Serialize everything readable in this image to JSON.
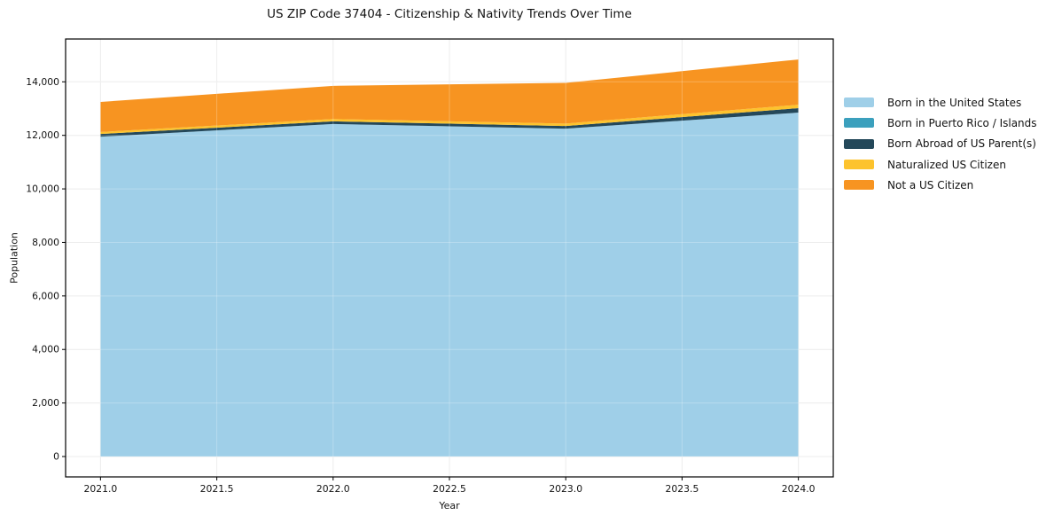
{
  "figure": {
    "background_color": "#ffffff",
    "grid_color": "#e7e7e7",
    "spine_color": "#000000",
    "text_color": "#141414"
  },
  "chart_data": {
    "type": "area",
    "stacked": true,
    "title": "US ZIP Code 37404 - Citizenship & Nativity Trends Over Time",
    "xlabel": "Year",
    "ylabel": "Population",
    "x": [
      2021,
      2022,
      2023,
      2024
    ],
    "series": [
      {
        "name": "Born in the United States",
        "color": "#9fcfe8",
        "values": [
          11950,
          12425,
          12250,
          12850
        ]
      },
      {
        "name": "Born in Puerto Rico / Islands",
        "color": "#3ba0bd",
        "values": [
          0,
          0,
          0,
          0
        ]
      },
      {
        "name": "Born Abroad of US Parent(s)",
        "color": "#24485a",
        "values": [
          100,
          100,
          100,
          165
        ]
      },
      {
        "name": "Naturalized US Citizen",
        "color": "#fdc32d",
        "values": [
          75,
          85,
          90,
          130
        ]
      },
      {
        "name": "Not a US Citizen",
        "color": "#f79421",
        "values": [
          1125,
          1240,
          1520,
          1690
        ]
      }
    ],
    "totals": [
      13250,
      13850,
      13960,
      14835
    ],
    "x_ticks": [
      "2021.0",
      "2021.5",
      "2022.0",
      "2022.5",
      "2023.0",
      "2023.5",
      "2024.0"
    ],
    "x_tick_values": [
      2021,
      2021.5,
      2022,
      2022.5,
      2023,
      2023.5,
      2024
    ],
    "y_ticks": [
      "0",
      "2,000",
      "4,000",
      "6,000",
      "8,000",
      "10,000",
      "12,000",
      "14,000"
    ],
    "y_tick_values": [
      0,
      2000,
      4000,
      6000,
      8000,
      10000,
      12000,
      14000
    ],
    "xlim": [
      2020.85,
      2024.15
    ],
    "ylim": [
      -762,
      15600
    ],
    "grid": true,
    "legend_position": "right-outside"
  }
}
